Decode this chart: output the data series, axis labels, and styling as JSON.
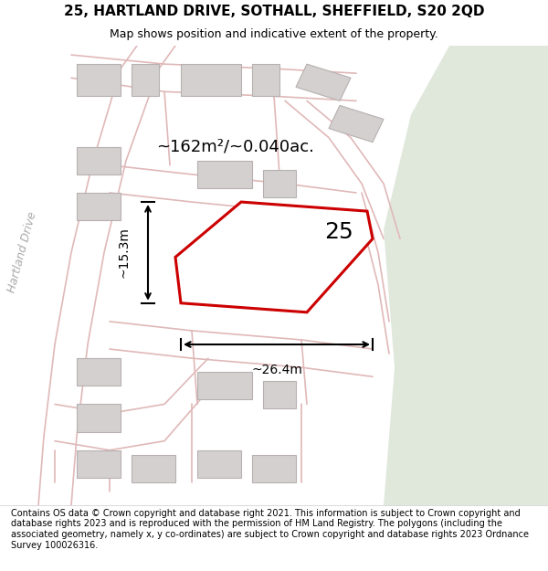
{
  "title_line1": "25, HARTLAND DRIVE, SOTHALL, SHEFFIELD, S20 2QD",
  "title_line2": "Map shows position and indicative extent of the property.",
  "footer_text": "Contains OS data © Crown copyright and database right 2021. This information is subject to Crown copyright and database rights 2023 and is reproduced with the permission of HM Land Registry. The polygons (including the associated geometry, namely x, y co-ordinates) are subject to Crown copyright and database rights 2023 Ordnance Survey 100026316.",
  "area_label": "~162m²/~0.040ac.",
  "dim_width": "~26.4m",
  "dim_height": "~15.3m",
  "number_label": "25",
  "bg_color": "#f5f5f5",
  "map_bg": "#ede9e9",
  "road_color_light": "#e0b8b8",
  "building_color": "#d4d0d0",
  "building_edge": "#b8b0b0",
  "highlight_poly_color": "#ffffff",
  "highlight_poly_edge": "#cc0000",
  "green_area": "#e0e8dc",
  "hartland_drive_label": "Hartland Drive",
  "title_fontsize": 11,
  "subtitle_fontsize": 9,
  "footer_fontsize": 7
}
